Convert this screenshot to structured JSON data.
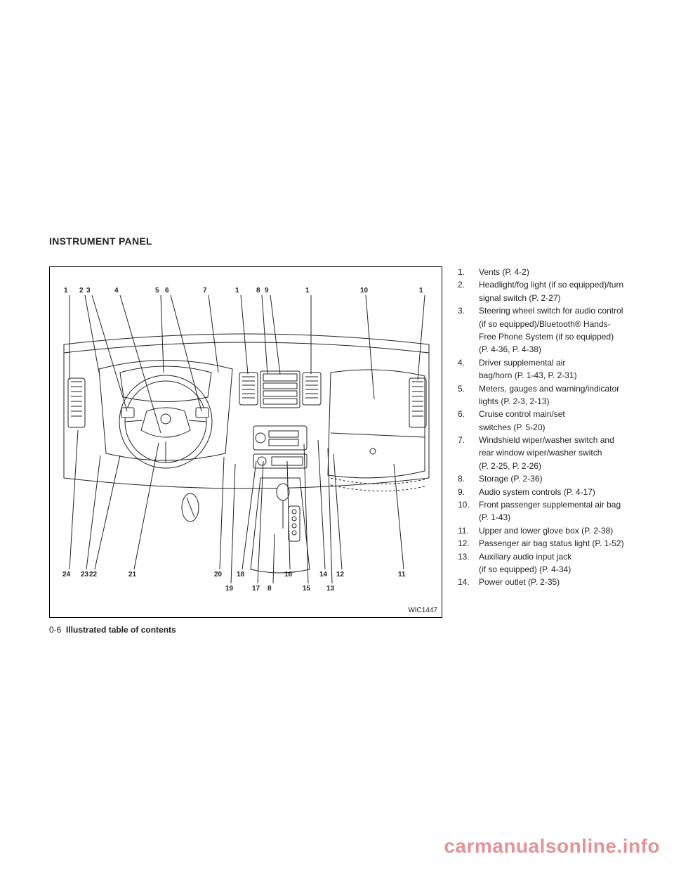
{
  "section_title": "INSTRUMENT PANEL",
  "figure": {
    "code": "WIC1447",
    "top_callouts": [
      "1",
      "2",
      "3",
      "4",
      "5",
      "6",
      "7",
      "1",
      "8",
      "9",
      "1",
      "10",
      "1"
    ],
    "top_x": [
      24,
      46,
      56,
      96,
      154,
      168,
      222,
      268,
      298,
      310,
      368,
      446,
      530
    ],
    "bot_callouts_upper": [
      "24",
      "23",
      "22",
      "21",
      "20",
      "18",
      "16",
      "14",
      "12",
      "11"
    ],
    "bot_x_upper": [
      22,
      48,
      60,
      116,
      238,
      270,
      338,
      388,
      412,
      500
    ],
    "bot_callouts_lower": [
      "19",
      "17",
      "8",
      "15",
      "13"
    ],
    "bot_x_lower": [
      254,
      292,
      314,
      364,
      398
    ],
    "colors": {
      "stroke": "#222222",
      "bg": "#ffffff"
    }
  },
  "footer": {
    "page_num": "0-6",
    "title": "Illustrated table of contents"
  },
  "legend": [
    {
      "n": "1.",
      "lines": [
        "Vents (P. 4-2)"
      ]
    },
    {
      "n": "2.",
      "lines": [
        "Headlight/fog light (if so equipped)/turn",
        "signal switch (P. 2-27)"
      ]
    },
    {
      "n": "3.",
      "lines": [
        "Steering wheel switch for audio control",
        "(if so equipped)/Bluetooth® Hands-",
        "Free Phone System (if so equipped)",
        "(P. 4-36, P. 4-38)"
      ]
    },
    {
      "n": "4.",
      "lines": [
        "Driver supplemental air",
        "bag/horn (P. 1-43, P. 2-31)"
      ]
    },
    {
      "n": "5.",
      "lines": [
        "Meters, gauges and warning/indicator",
        "lights (P. 2-3, 2-13)"
      ]
    },
    {
      "n": "6.",
      "lines": [
        "Cruise control main/set",
        "switches (P. 5-20)"
      ]
    },
    {
      "n": "7.",
      "lines": [
        "Windshield wiper/washer switch and",
        "rear window wiper/washer switch",
        "(P. 2-25, P. 2-26)"
      ]
    },
    {
      "n": "8.",
      "lines": [
        "Storage (P. 2-36)"
      ]
    },
    {
      "n": "9.",
      "lines": [
        "Audio system controls (P. 4-17)"
      ]
    },
    {
      "n": "10.",
      "lines": [
        "Front passenger supplemental air bag",
        "(P. 1-43)"
      ]
    },
    {
      "n": "11.",
      "lines": [
        "Upper and lower glove box (P. 2-38)"
      ]
    },
    {
      "n": "12.",
      "lines": [
        "Passenger air bag status light (P. 1-52)"
      ]
    },
    {
      "n": "13.",
      "lines": [
        "Auxiliary audio input jack",
        "(if so equipped) (P. 4-34)"
      ]
    },
    {
      "n": "14.",
      "lines": [
        "Power outlet (P. 2-35)"
      ]
    }
  ],
  "watermark": "carmanualsonline.info"
}
